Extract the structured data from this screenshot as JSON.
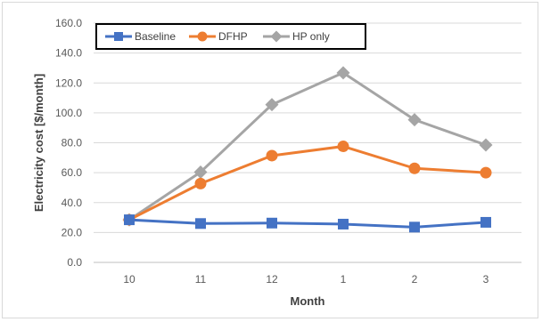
{
  "chart_data": {
    "type": "line",
    "categories": [
      "10",
      "11",
      "12",
      "1",
      "2",
      "3"
    ],
    "xlabel": "Month",
    "ylabel": "Electricity cost [$/month]",
    "ylim": [
      0,
      160
    ],
    "yticks": [
      "0.0",
      "20.0",
      "40.0",
      "60.0",
      "80.0",
      "100.0",
      "120.0",
      "140.0",
      "160.0"
    ],
    "grid": true,
    "legend_position": "top-left",
    "series": [
      {
        "name": "Baseline",
        "color": "#4472c4",
        "marker": "square",
        "values": [
          28.5,
          26.0,
          26.3,
          25.6,
          23.6,
          26.8
        ]
      },
      {
        "name": "DFHP",
        "color": "#ed7d31",
        "marker": "circle",
        "values": [
          28.5,
          52.7,
          71.4,
          77.6,
          62.9,
          60.0
        ]
      },
      {
        "name": "HP only",
        "color": "#a5a5a5",
        "marker": "diamond",
        "values": [
          28.5,
          60.4,
          105.5,
          126.8,
          95.4,
          78.5
        ]
      }
    ]
  }
}
